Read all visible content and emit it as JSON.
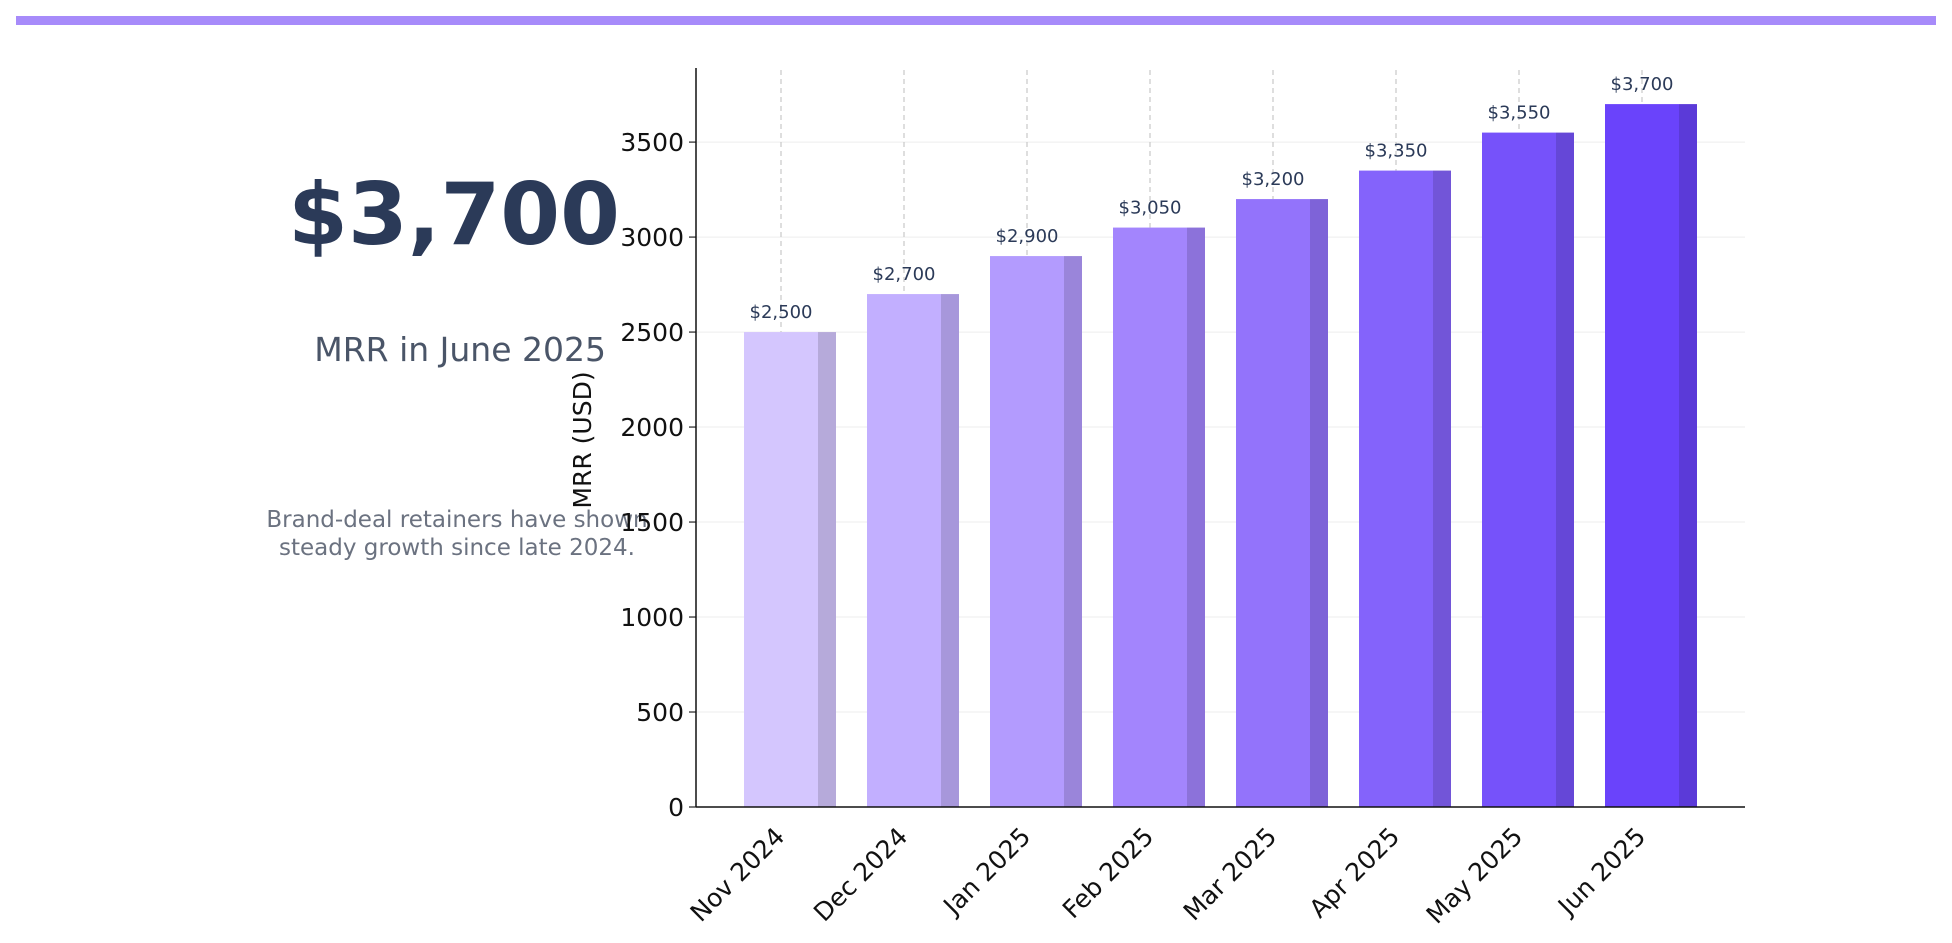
{
  "kpi": {
    "value": "$3,700",
    "label": "MRR in June 2025",
    "note_line1": "Brand-deal retainers have shown",
    "note_line2": "steady growth since late 2024."
  },
  "colors": {
    "accent_bar": "#a78bfa",
    "kpi_text": "#2b3a58",
    "bar_gradient": [
      "#d4c6fe",
      "#c2afff",
      "#b39bfe",
      "#a385fd",
      "#9373fb",
      "#8463fb",
      "#7652fa",
      "#6a43fb"
    ]
  },
  "chart_data": {
    "type": "bar",
    "title": "",
    "xlabel": "",
    "ylabel": "MRR (USD)",
    "categories": [
      "Nov 2024",
      "Dec 2024",
      "Jan 2025",
      "Feb 2025",
      "Mar 2025",
      "Apr 2025",
      "May 2025",
      "Jun 2025"
    ],
    "values": [
      2500,
      2700,
      2900,
      3050,
      3200,
      3350,
      3550,
      3700
    ],
    "data_labels": [
      "$2,500",
      "$2,700",
      "$2,900",
      "$3,050",
      "$3,200",
      "$3,350",
      "$3,550",
      "$3,700"
    ],
    "yticks": [
      0,
      500,
      1000,
      1500,
      2000,
      2500,
      3000,
      3500
    ],
    "ylim": [
      0,
      3890
    ],
    "grid": true
  }
}
